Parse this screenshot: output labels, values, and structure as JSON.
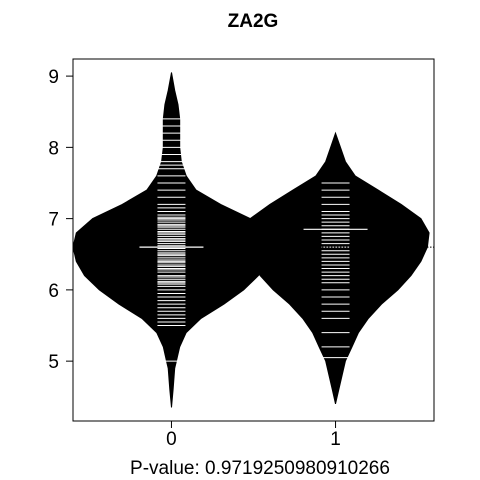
{
  "chart_data": {
    "type": "beanplot",
    "title": "ZA2G",
    "xlabel": "P-value: 0.9719250980910266",
    "ylabel": "",
    "categories": [
      "0",
      "1"
    ],
    "yticks": [
      "5",
      "6",
      "7",
      "8",
      "9"
    ],
    "ylim": [
      4.16,
      9.24
    ],
    "xlim": [
      -0.6,
      1.6
    ],
    "overall_mean": 6.6,
    "grid": false,
    "series": [
      {
        "category": "0",
        "mean": 6.6,
        "density": [
          [
            4.35,
            0.0
          ],
          [
            4.6,
            0.01
          ],
          [
            4.9,
            0.02
          ],
          [
            5.0,
            0.03
          ],
          [
            5.2,
            0.05
          ],
          [
            5.4,
            0.09
          ],
          [
            5.6,
            0.18
          ],
          [
            5.8,
            0.32
          ],
          [
            6.0,
            0.44
          ],
          [
            6.2,
            0.53
          ],
          [
            6.4,
            0.58
          ],
          [
            6.6,
            0.6
          ],
          [
            6.8,
            0.58
          ],
          [
            7.0,
            0.48
          ],
          [
            7.2,
            0.3
          ],
          [
            7.4,
            0.15
          ],
          [
            7.6,
            0.09
          ],
          [
            7.8,
            0.06
          ],
          [
            8.0,
            0.05
          ],
          [
            8.2,
            0.05
          ],
          [
            8.4,
            0.05
          ],
          [
            8.6,
            0.04
          ],
          [
            8.8,
            0.02
          ],
          [
            9.05,
            0.0
          ]
        ],
        "observations": [
          5.0,
          5.5,
          5.55,
          5.6,
          5.65,
          5.7,
          5.75,
          5.8,
          5.85,
          5.9,
          5.95,
          6.0,
          6.05,
          6.08,
          6.1,
          6.12,
          6.15,
          6.18,
          6.2,
          6.25,
          6.28,
          6.3,
          6.33,
          6.35,
          6.38,
          6.4,
          6.42,
          6.45,
          6.48,
          6.5,
          6.52,
          6.55,
          6.58,
          6.62,
          6.65,
          6.68,
          6.7,
          6.72,
          6.75,
          6.78,
          6.8,
          6.82,
          6.85,
          6.88,
          6.9,
          6.92,
          6.95,
          6.98,
          7.0,
          7.02,
          7.05,
          7.1,
          7.15,
          7.2,
          7.3,
          7.4,
          7.5,
          7.6,
          7.7,
          7.75,
          7.8,
          7.9,
          8.0,
          8.1,
          8.2,
          8.3,
          8.4
        ]
      },
      {
        "category": "1",
        "mean": 6.85,
        "density": [
          [
            4.4,
            0.0
          ],
          [
            4.6,
            0.02
          ],
          [
            4.8,
            0.04
          ],
          [
            5.0,
            0.06
          ],
          [
            5.2,
            0.1
          ],
          [
            5.4,
            0.14
          ],
          [
            5.6,
            0.2
          ],
          [
            5.8,
            0.28
          ],
          [
            6.0,
            0.38
          ],
          [
            6.2,
            0.46
          ],
          [
            6.4,
            0.52
          ],
          [
            6.6,
            0.56
          ],
          [
            6.8,
            0.57
          ],
          [
            7.0,
            0.52
          ],
          [
            7.2,
            0.4
          ],
          [
            7.4,
            0.26
          ],
          [
            7.6,
            0.12
          ],
          [
            7.8,
            0.06
          ],
          [
            8.0,
            0.03
          ],
          [
            8.2,
            0.0
          ]
        ],
        "observations": [
          5.05,
          5.2,
          5.4,
          5.6,
          5.7,
          5.8,
          5.9,
          6.0,
          6.1,
          6.15,
          6.2,
          6.25,
          6.3,
          6.35,
          6.4,
          6.45,
          6.5,
          6.55,
          6.6,
          6.65,
          6.7,
          6.75,
          6.8,
          6.85,
          6.9,
          6.95,
          7.0,
          7.05,
          7.1,
          7.2,
          7.3,
          7.4,
          7.5
        ]
      }
    ]
  }
}
